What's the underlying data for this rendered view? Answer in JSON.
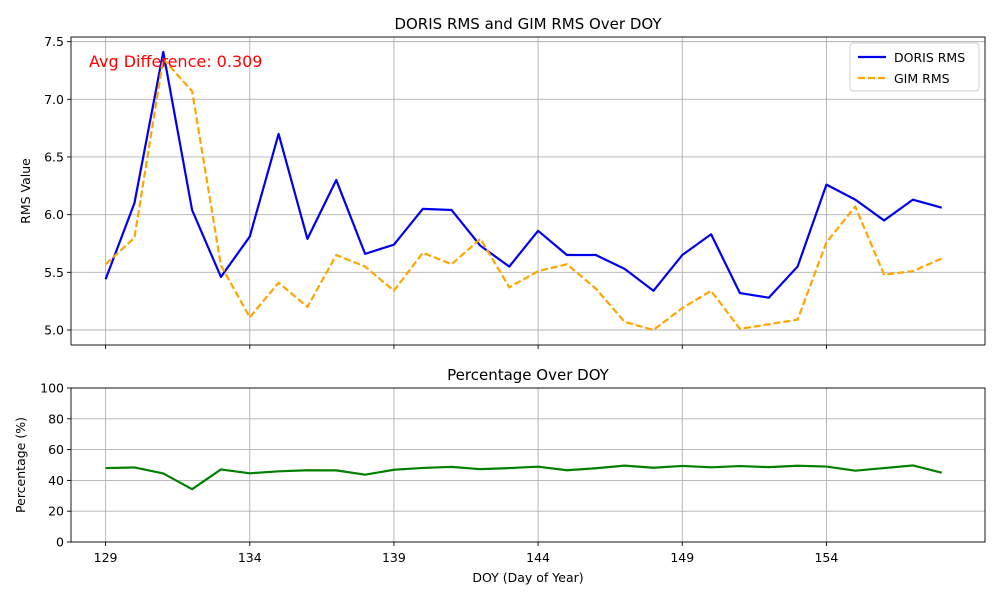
{
  "chart_data": [
    {
      "type": "line",
      "title": "DORIS RMS and GIM RMS Over DOY",
      "xlabel": "",
      "ylabel": "RMS Value",
      "x": [
        129,
        130,
        131,
        132,
        133,
        134,
        135,
        136,
        137,
        138,
        139,
        140,
        141,
        142,
        143,
        144,
        145,
        146,
        147,
        148,
        149,
        150,
        151,
        152,
        153,
        154,
        155,
        156,
        157,
        158
      ],
      "xlim": [
        127.8,
        159.5
      ],
      "ylim": [
        4.87,
        7.54
      ],
      "xticks": [
        129,
        134,
        139,
        144,
        149,
        154
      ],
      "yticks": [
        5.0,
        5.5,
        6.0,
        6.5,
        7.0,
        7.5
      ],
      "ytick_labels": [
        "5.0",
        "5.5",
        "6.0",
        "6.5",
        "7.0",
        "7.5"
      ],
      "grid": true,
      "legend_position": "top-right",
      "annotation": {
        "text": "Avg Difference: 0.309",
        "color": "#ff0000"
      },
      "series": [
        {
          "name": "DORIS RMS",
          "color": "#0000ee",
          "style": "solid",
          "values": [
            5.44,
            6.1,
            7.41,
            6.04,
            5.46,
            5.81,
            6.7,
            5.79,
            6.3,
            5.66,
            5.74,
            6.05,
            6.04,
            5.73,
            5.55,
            5.86,
            5.65,
            5.65,
            5.53,
            5.34,
            5.65,
            5.83,
            5.32,
            5.28,
            5.55,
            6.26,
            6.13,
            5.95,
            6.13,
            6.06
          ]
        },
        {
          "name": "GIM RMS",
          "color": "#ffa500",
          "style": "dashed",
          "values": [
            5.57,
            5.8,
            7.35,
            7.07,
            5.56,
            5.11,
            5.41,
            5.2,
            5.65,
            5.55,
            5.34,
            5.67,
            5.57,
            5.79,
            5.37,
            5.51,
            5.57,
            5.36,
            5.07,
            5.0,
            5.19,
            5.34,
            5.01,
            5.05,
            5.09,
            5.76,
            6.07,
            5.48,
            5.51,
            5.62
          ]
        }
      ]
    },
    {
      "type": "line",
      "title": "Percentage Over DOY",
      "xlabel": "DOY (Day of Year)",
      "ylabel": "Percentage (%)",
      "x": [
        129,
        130,
        131,
        132,
        133,
        134,
        135,
        136,
        137,
        138,
        139,
        140,
        141,
        142,
        143,
        144,
        145,
        146,
        147,
        148,
        149,
        150,
        151,
        152,
        153,
        154,
        155,
        156,
        157,
        158
      ],
      "xlim": [
        127.8,
        159.5
      ],
      "ylim": [
        0,
        100
      ],
      "xticks": [
        129,
        134,
        139,
        144,
        149,
        154
      ],
      "xtick_labels": [
        "129",
        "134",
        "139",
        "144",
        "149",
        "154"
      ],
      "yticks": [
        0,
        20,
        40,
        60,
        80,
        100
      ],
      "ytick_labels": [
        "0",
        "20",
        "40",
        "60",
        "80",
        "100"
      ],
      "grid": true,
      "series": [
        {
          "color": "#008000",
          "style": "solid",
          "values": [
            48.0,
            48.4,
            44.5,
            34.3,
            47.1,
            44.6,
            45.9,
            46.6,
            46.5,
            43.7,
            46.9,
            48.1,
            48.8,
            47.3,
            48.0,
            48.9,
            46.6,
            47.9,
            49.6,
            48.2,
            49.4,
            48.5,
            49.3,
            48.6,
            49.5,
            49.0,
            46.3,
            48.0,
            49.7,
            45.0
          ]
        }
      ]
    }
  ]
}
